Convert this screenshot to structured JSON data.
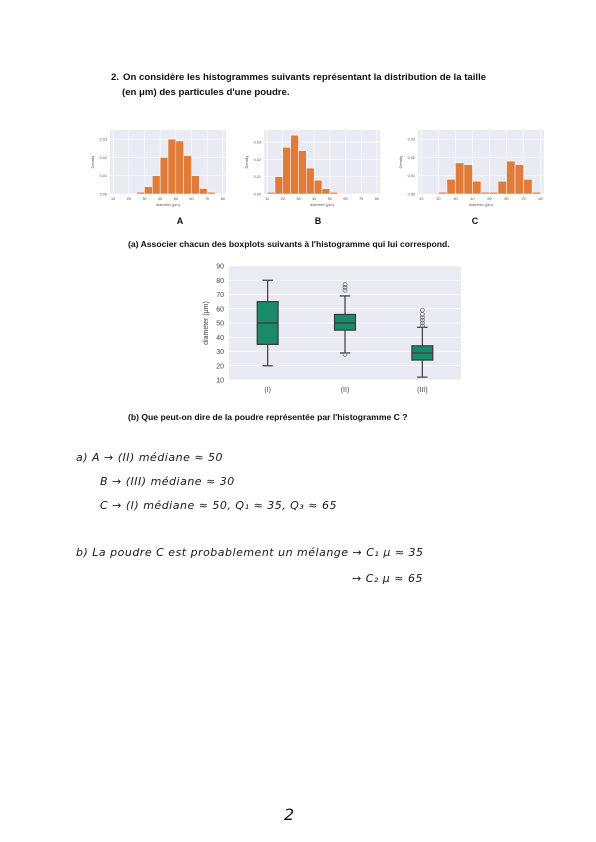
{
  "question": {
    "number": "2.",
    "line1": "On considère les histogrammes suivants représentant la distribution de la taille",
    "line2": "(en μm) des particules d'une poudre."
  },
  "histograms": {
    "ylabel": "Density",
    "xlabel": "diameter (μm)",
    "bar_color": "#e07b39",
    "labels": [
      "A",
      "B",
      "C"
    ]
  },
  "sub_a": "(a)  Associer chacun des boxplots suivants à l'histogramme qui lui correspond.",
  "sub_b": "(b)  Que peut-on dire de la poudre représentée par l'histogramme C ?",
  "chart_data": [
    {
      "type": "bar",
      "label": "A",
      "bin_edges": [
        10,
        15,
        20,
        25,
        30,
        35,
        40,
        45,
        50,
        55,
        60,
        65,
        70,
        75,
        80
      ],
      "values": [
        0,
        0,
        0,
        0.001,
        0.004,
        0.01,
        0.02,
        0.03,
        0.029,
        0.021,
        0.01,
        0.003,
        0.001,
        0
      ],
      "xticks": [
        10,
        20,
        30,
        40,
        50,
        60,
        70,
        80
      ],
      "yticks": [
        "0.00",
        "0.01",
        "0.02",
        "0.03"
      ],
      "ylim": [
        0,
        0.035
      ]
    },
    {
      "type": "bar",
      "label": "B",
      "bin_edges": [
        10,
        15,
        20,
        25,
        30,
        35,
        40,
        45,
        50,
        55,
        60,
        65,
        70,
        75,
        80
      ],
      "values": [
        0.001,
        0.01,
        0.027,
        0.034,
        0.025,
        0.015,
        0.008,
        0.003,
        0.001,
        0,
        0,
        0,
        0,
        0
      ],
      "xticks": [
        10,
        20,
        30,
        40,
        50,
        60,
        70,
        80
      ],
      "yticks": [
        "0.00",
        "0.01",
        "0.02",
        "0.03"
      ],
      "ylim": [
        0,
        0.037
      ]
    },
    {
      "type": "bar",
      "label": "C",
      "bin_edges": [
        10,
        15,
        20,
        25,
        30,
        35,
        40,
        45,
        50,
        55,
        60,
        65,
        70,
        75,
        80
      ],
      "values": [
        0,
        0,
        0.001,
        0.008,
        0.017,
        0.016,
        0.007,
        0.001,
        0.001,
        0.007,
        0.018,
        0.016,
        0.008,
        0.001
      ],
      "xticks": [
        10,
        20,
        30,
        40,
        50,
        60,
        70,
        80
      ],
      "yticks": [
        "0.00",
        "0.01",
        "0.02",
        "0.03"
      ],
      "ylim": [
        0,
        0.035
      ]
    },
    {
      "type": "box",
      "ylabel": "diameter (μm)",
      "categories": [
        "(I)",
        "(II)",
        "(III)"
      ],
      "ylim": [
        10,
        90
      ],
      "yticks": [
        10,
        20,
        30,
        40,
        50,
        60,
        70,
        80,
        90
      ],
      "box_color": "#1b8a6b",
      "boxes": [
        {
          "whislo": 20,
          "q1": 35,
          "med": 50,
          "q3": 65,
          "whishi": 80,
          "fliers": []
        },
        {
          "whislo": 29,
          "q1": 45,
          "med": 50,
          "q3": 56,
          "whishi": 69,
          "fliers": [
            28,
            73,
            75,
            77
          ]
        },
        {
          "whislo": 12,
          "q1": 24,
          "med": 29,
          "q3": 34,
          "whishi": 47,
          "fliers": [
            48,
            50,
            52,
            54,
            56,
            59
          ]
        }
      ]
    }
  ],
  "answers": {
    "a_line1": "a)  A → (II)  médiane ≈ 50",
    "a_line2": "B → (III)  médiane ≈ 30",
    "a_line3": "C → (I)  médiane ≈ 50,   Q₁ ≈ 35,   Q₃ ≈ 65",
    "b_line1": "b) La poudre C est probablement un mélange   → C₁  μ ≈ 35",
    "b_line2": "→ C₂  μ ≈ 65"
  },
  "page_number": "2"
}
